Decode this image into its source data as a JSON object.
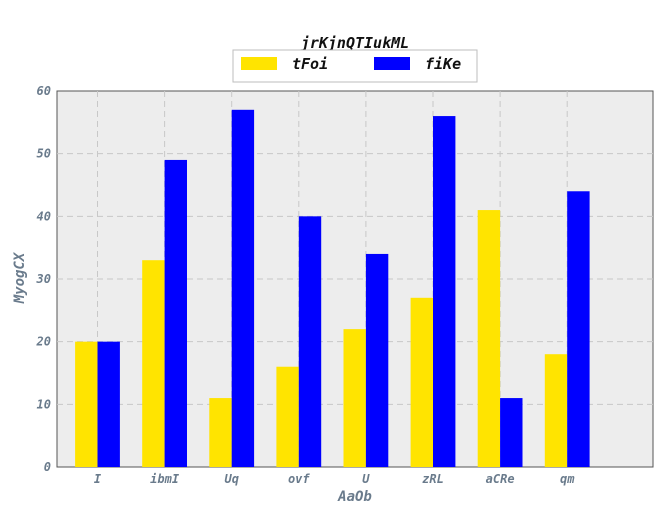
{
  "chart_data": {
    "type": "bar",
    "title": "jrKjnQTIukML",
    "xlabel": "AaOb",
    "ylabel": "MyogCX",
    "categories": [
      "I",
      "ibmI",
      "Uq",
      "ovf",
      "U",
      "zRL",
      "aCRe",
      "qm"
    ],
    "series": [
      {
        "name": "tFoi",
        "color": "#ffe400",
        "values": [
          20,
          33,
          11,
          16,
          22,
          27,
          41,
          18
        ]
      },
      {
        "name": "fiKe",
        "color": "#0000ff",
        "values": [
          20,
          49,
          57,
          40,
          34,
          56,
          11,
          44
        ]
      }
    ],
    "ylim": [
      0,
      60
    ],
    "yticks": [
      "0",
      "10",
      "20",
      "30",
      "40",
      "50",
      "60"
    ],
    "grid": true,
    "legend_position": "top-center",
    "background_color": "#ededed",
    "grid_color": "#c8c8c8"
  }
}
